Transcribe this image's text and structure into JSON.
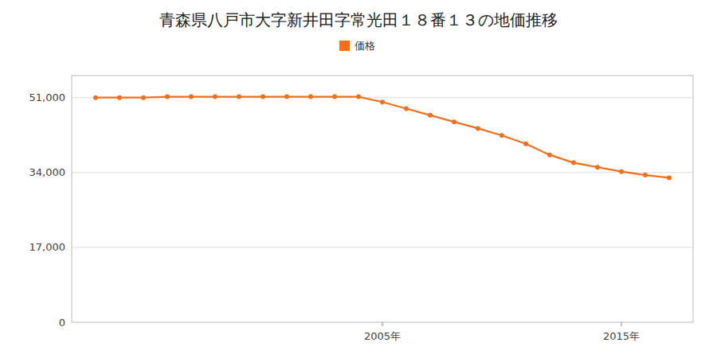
{
  "chart_data": {
    "type": "line",
    "title": "青森県八戸市大字新井田字常光田１８番１３の地価推移",
    "x": [
      1993,
      1994,
      1995,
      1996,
      1997,
      1998,
      1999,
      2000,
      2001,
      2002,
      2003,
      2004,
      2005,
      2006,
      2007,
      2008,
      2009,
      2010,
      2011,
      2012,
      2013,
      2014,
      2015,
      2016,
      2017
    ],
    "series": [
      {
        "name": "価格",
        "color": "#f07020",
        "marker": "circle",
        "values": [
          51000,
          51000,
          51000,
          51200,
          51200,
          51200,
          51200,
          51200,
          51200,
          51200,
          51200,
          51200,
          50000,
          48500,
          47000,
          45500,
          44000,
          42400,
          40500,
          38000,
          36200,
          35200,
          34200,
          33400,
          32800
        ]
      }
    ],
    "xlim": [
      1992,
      2018
    ],
    "ylim": [
      0,
      56000
    ],
    "xticks": [
      {
        "value": 2005,
        "label": "2005年"
      },
      {
        "value": 2015,
        "label": "2015年"
      }
    ],
    "yticks": [
      0,
      {
        "value": 17000,
        "label": "17,000"
      },
      {
        "value": 34000,
        "label": "34,000"
      },
      {
        "value": 51000,
        "label": "51,000"
      }
    ],
    "grid": "y",
    "legend": "top"
  }
}
